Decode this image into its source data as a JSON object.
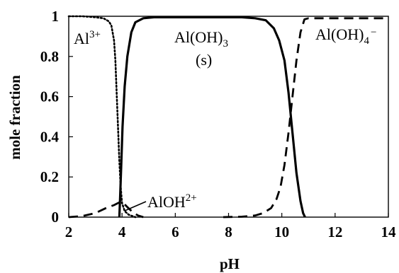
{
  "chart_data": {
    "type": "line",
    "title": "",
    "xlabel": "pH",
    "ylabel": "mole fraction",
    "xlim": [
      2,
      14
    ],
    "ylim": [
      0,
      1
    ],
    "x_ticks": [
      2,
      4,
      6,
      8,
      10,
      12,
      14
    ],
    "x_tick_labels": [
      "2",
      "4",
      "6",
      "8",
      "10",
      "12",
      "14"
    ],
    "y_ticks": [
      0,
      0.2,
      0.4,
      0.6,
      0.8,
      1
    ],
    "y_tick_labels": [
      "0",
      "0.2",
      "0.4",
      "0.6",
      "0.8",
      "1"
    ],
    "grid": false,
    "legend": "none",
    "series": [
      {
        "label": "Al3+",
        "style": "dotted",
        "points": [
          [
            2.0,
            1.0
          ],
          [
            2.5,
            1.0
          ],
          [
            3.0,
            0.995
          ],
          [
            3.3,
            0.99
          ],
          [
            3.5,
            0.975
          ],
          [
            3.6,
            0.955
          ],
          [
            3.7,
            0.88
          ],
          [
            3.75,
            0.78
          ],
          [
            3.8,
            0.62
          ],
          [
            3.85,
            0.45
          ],
          [
            3.9,
            0.28
          ],
          [
            3.95,
            0.15
          ],
          [
            4.0,
            0.07
          ],
          [
            4.1,
            0.03
          ],
          [
            4.25,
            0.012
          ],
          [
            4.5,
            0.0
          ]
        ]
      },
      {
        "label": "AlOH2+",
        "style": "dashed",
        "points": [
          [
            2.0,
            0.0
          ],
          [
            2.5,
            0.005
          ],
          [
            3.0,
            0.02
          ],
          [
            3.4,
            0.045
          ],
          [
            3.7,
            0.06
          ],
          [
            3.85,
            0.07
          ],
          [
            3.95,
            0.075
          ],
          [
            4.05,
            0.07
          ],
          [
            4.2,
            0.05
          ],
          [
            4.4,
            0.025
          ],
          [
            4.6,
            0.008
          ],
          [
            4.8,
            0.0
          ]
        ]
      },
      {
        "label": "Al(OH)3 (s)",
        "style": "solid",
        "points": [
          [
            3.9,
            0.0
          ],
          [
            3.93,
            0.1
          ],
          [
            3.97,
            0.25
          ],
          [
            4.02,
            0.45
          ],
          [
            4.1,
            0.65
          ],
          [
            4.2,
            0.8
          ],
          [
            4.35,
            0.92
          ],
          [
            4.5,
            0.97
          ],
          [
            4.8,
            0.99
          ],
          [
            5.2,
            0.995
          ],
          [
            8.5,
            0.995
          ],
          [
            9.0,
            0.99
          ],
          [
            9.4,
            0.98
          ],
          [
            9.7,
            0.94
          ],
          [
            9.9,
            0.88
          ],
          [
            10.1,
            0.78
          ],
          [
            10.25,
            0.62
          ],
          [
            10.4,
            0.42
          ],
          [
            10.55,
            0.22
          ],
          [
            10.7,
            0.08
          ],
          [
            10.8,
            0.02
          ],
          [
            10.87,
            0.0
          ]
        ]
      },
      {
        "label": "Al(OH)4-",
        "style": "dashed",
        "points": [
          [
            7.8,
            0.0
          ],
          [
            8.5,
            0.002
          ],
          [
            9.0,
            0.008
          ],
          [
            9.3,
            0.02
          ],
          [
            9.6,
            0.045
          ],
          [
            9.8,
            0.09
          ],
          [
            9.95,
            0.15
          ],
          [
            10.1,
            0.26
          ],
          [
            10.25,
            0.42
          ],
          [
            10.4,
            0.6
          ],
          [
            10.55,
            0.78
          ],
          [
            10.7,
            0.92
          ],
          [
            10.85,
            0.985
          ],
          [
            11.0,
            0.99
          ],
          [
            14.0,
            0.99
          ]
        ]
      }
    ],
    "annotations": [
      {
        "base": "Al",
        "sup": "3+"
      },
      {
        "base": "Al(OH)",
        "sub": "3"
      },
      {
        "base": "(s)"
      },
      {
        "base": "Al(OH)",
        "sub": "4",
        "sup": "−"
      },
      {
        "base": "AlOH",
        "sup": "2+"
      }
    ]
  }
}
